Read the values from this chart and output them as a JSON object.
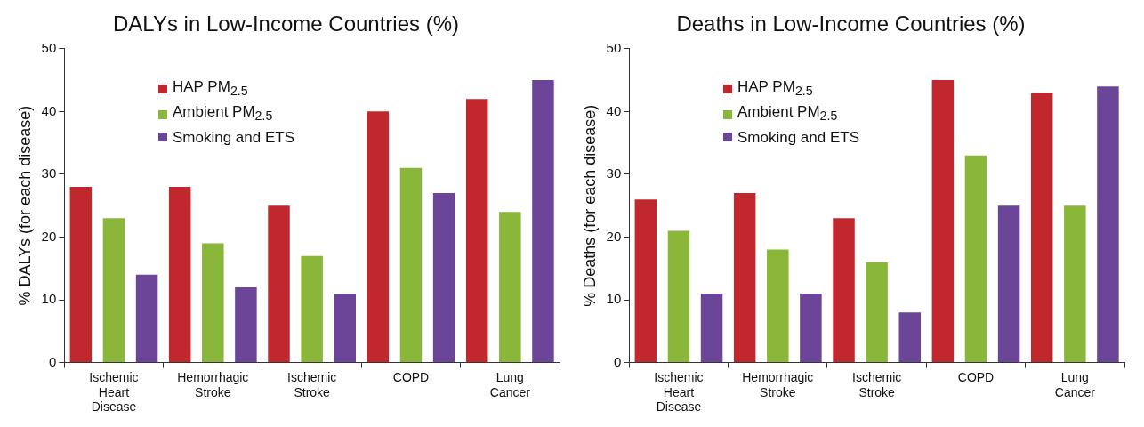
{
  "chart_data": [
    {
      "type": "bar",
      "title": "DALYs in Low-Income Countries (%)",
      "ylabel": "% DALYs (for each disease)",
      "categories": [
        "Ischemic Heart Disease",
        "Hemorrhagic Stroke",
        "Ischemic Stroke",
        "COPD",
        "Lung Cancer"
      ],
      "ylim": [
        0,
        50
      ],
      "yticks": [
        0,
        10,
        20,
        30,
        40,
        50
      ],
      "grid": false,
      "legend": "top left",
      "series": [
        {
          "name": "HAP PM$_{2.5}$",
          "color": "#c0282d",
          "values": [
            28,
            28,
            25,
            40,
            42
          ]
        },
        {
          "name": "Ambient PM$_{2.5}$",
          "color": "#8ab63a",
          "values": [
            23,
            19,
            17,
            31,
            24
          ]
        },
        {
          "name": "Smoking and ETS",
          "color": "#6b4597",
          "values": [
            14,
            12,
            11,
            27,
            45
          ]
        }
      ]
    },
    {
      "type": "bar",
      "title": "Deaths in Low-Income Countries (%)",
      "ylabel": "% Deaths (for each disease)",
      "categories": [
        "Ischemic Heart Disease",
        "Hemorrhagic Stroke",
        "Ischemic Stroke",
        "COPD",
        "Lung Cancer"
      ],
      "ylim": [
        0,
        50
      ],
      "yticks": [
        0,
        10,
        20,
        30,
        40,
        50
      ],
      "grid": false,
      "legend": "top left",
      "series": [
        {
          "name": "HAP PM$_{2.5}$",
          "color": "#c0282d",
          "values": [
            26,
            27,
            23,
            45,
            43
          ]
        },
        {
          "name": "Ambient PM$_{2.5}$",
          "color": "#8ab63a",
          "values": [
            21,
            18,
            16,
            33,
            25
          ]
        },
        {
          "name": "Smoking and ETS",
          "color": "#6b4597",
          "values": [
            11,
            11,
            8,
            25,
            44
          ]
        }
      ]
    }
  ]
}
